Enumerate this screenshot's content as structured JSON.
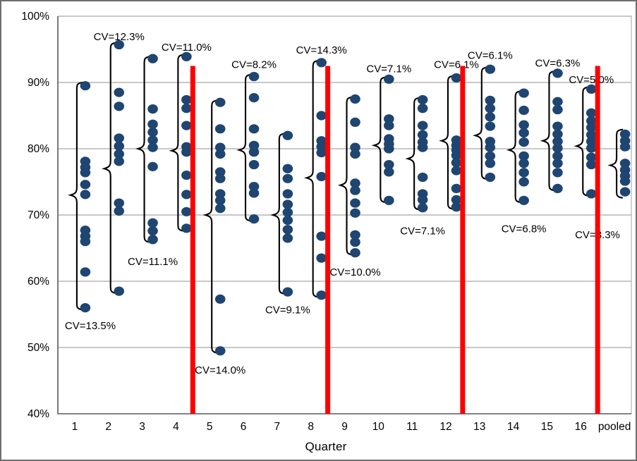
{
  "axes": {
    "x_title": "Quarter",
    "y_ticks": [
      {
        "label": "100%",
        "value": 100
      },
      {
        "label": "90%",
        "value": 90
      },
      {
        "label": "80%",
        "value": 80
      },
      {
        "label": "70%",
        "value": 70
      },
      {
        "label": "60%",
        "value": 60
      },
      {
        "label": "50%",
        "value": 50
      },
      {
        "label": "40%",
        "value": 40
      }
    ]
  },
  "colors": {
    "dot": "#1f4571",
    "brace": "#000000",
    "red_line": "#ff0000",
    "grid": "#a6a6a6",
    "axis": "#595959",
    "text": "#000000",
    "background": "#ffffff"
  },
  "chart_data": {
    "type": "scatter",
    "title": "",
    "xlabel": "Quarter",
    "ylabel": "",
    "ylim": [
      40,
      100
    ],
    "y_tick_step": 10,
    "grid": true,
    "categories": [
      "1",
      "2",
      "3",
      "4",
      "5",
      "6",
      "7",
      "8",
      "9",
      "10",
      "11",
      "12",
      "13",
      "14",
      "15",
      "16",
      "pooled"
    ],
    "dividers": {
      "after_categories": [
        "4",
        "8",
        "12",
        "16"
      ],
      "y_span": [
        40,
        92.5
      ]
    },
    "series": [
      {
        "category": "1",
        "values": [
          89.5,
          78.1,
          77.2,
          76.4,
          74.6,
          73.1,
          67.7,
          66.8,
          66.0,
          61.4,
          56.0
        ],
        "cv_label": "CV=13.5%",
        "cv_side": "below",
        "cv_y": 53.3,
        "brace": {
          "top": 90.0,
          "tip": 73.0,
          "bottom": 55.7
        }
      },
      {
        "category": "2",
        "values": [
          95.7,
          88.5,
          86.4,
          81.6,
          80.4,
          79.2,
          78.1,
          71.8,
          70.6,
          58.5
        ],
        "cv_label": "CV=12.3%",
        "cv_side": "above",
        "cv_y": 96.9,
        "brace": {
          "top": 96.0,
          "tip": 77.0,
          "bottom": 58.2
        }
      },
      {
        "category": "3",
        "values": [
          93.6,
          86.0,
          83.7,
          82.5,
          81.3,
          80.2,
          77.3,
          68.8,
          67.6,
          66.3
        ],
        "cv_label": "CV=11.1%",
        "cv_side": "below",
        "cv_y": 63.0,
        "brace": {
          "top": 93.9,
          "tip": 80.0,
          "bottom": 65.9
        }
      },
      {
        "category": "4",
        "values": [
          93.9,
          87.4,
          86.1,
          83.5,
          80.3,
          79.5,
          76.0,
          73.1,
          70.5,
          68.0
        ],
        "cv_label": "CV=11.0%",
        "cv_side": "above",
        "cv_y": 95.3,
        "brace": {
          "top": 94.2,
          "tip": 79.7,
          "bottom": 67.6
        }
      },
      {
        "category": "5",
        "values": [
          87.0,
          83.0,
          80.2,
          79.2,
          76.5,
          75.5,
          73.2,
          72.2,
          71.0,
          57.3,
          49.5
        ],
        "cv_label": "CV=14.0%",
        "cv_side": "below",
        "cv_y": 46.6,
        "brace": {
          "top": 87.3,
          "tip": 70.0,
          "bottom": 49.2
        }
      },
      {
        "category": "6",
        "values": [
          90.9,
          87.7,
          83.0,
          80.5,
          79.5,
          77.6,
          74.3,
          73.3,
          69.4
        ],
        "cv_label": "CV=8.2%",
        "cv_side": "above",
        "cv_y": 92.7,
        "brace": {
          "top": 91.2,
          "tip": 79.8,
          "bottom": 69.1
        }
      },
      {
        "category": "7",
        "values": [
          82.0,
          77.0,
          75.5,
          73.2,
          71.6,
          70.4,
          69.2,
          67.8,
          66.5,
          58.4
        ],
        "cv_label": "CV=9.1%",
        "cv_side": "below",
        "cv_y": 55.7,
        "brace": {
          "top": 82.3,
          "tip": 70.0,
          "bottom": 58.1
        }
      },
      {
        "category": "8",
        "values": [
          93.0,
          85.0,
          81.2,
          80.3,
          79.4,
          75.8,
          66.8,
          63.5,
          57.9
        ],
        "cv_label": "CV=14.3%",
        "cv_side": "above",
        "cv_y": 94.9,
        "brace": {
          "top": 93.3,
          "tip": 75.6,
          "bottom": 57.6
        }
      },
      {
        "category": "9",
        "values": [
          87.5,
          84.0,
          80.2,
          79.2,
          74.8,
          73.7,
          71.8,
          70.3,
          67.0,
          65.9,
          64.3
        ],
        "cv_label": "CV=10.0%",
        "cv_side": "below",
        "cv_y": 61.4,
        "brace": {
          "top": 87.8,
          "tip": 74.5,
          "bottom": 64.0
        }
      },
      {
        "category": "10",
        "values": [
          90.5,
          84.5,
          83.5,
          81.5,
          80.7,
          80.0,
          77.6,
          76.5,
          72.2
        ],
        "cv_label": "CV=7.1%",
        "cv_side": "above",
        "cv_y": 92.1,
        "brace": {
          "top": 90.8,
          "tip": 80.5,
          "bottom": 71.9
        }
      },
      {
        "category": "11",
        "values": [
          87.4,
          86.1,
          83.5,
          82.1,
          81.0,
          80.2,
          75.7,
          73.2,
          72.3,
          71.1
        ],
        "cv_label": "CV=7.1%",
        "cv_side": "below",
        "cv_y": 67.6,
        "brace": {
          "top": 87.7,
          "tip": 78.5,
          "bottom": 70.8
        }
      },
      {
        "category": "12",
        "values": [
          90.7,
          81.3,
          80.5,
          79.8,
          79.0,
          77.9,
          76.7,
          74.0,
          72.3,
          71.2
        ],
        "cv_label": "CV=6.1%",
        "cv_side": "above",
        "cv_y": 92.7,
        "brace": {
          "top": 91.0,
          "tip": 81.2,
          "bottom": 70.9
        }
      },
      {
        "category": "13",
        "values": [
          92.0,
          87.3,
          86.1,
          84.8,
          83.4,
          81.1,
          80.2,
          78.9,
          77.8,
          75.7
        ],
        "cv_label": "CV=6.1%",
        "cv_side": "above",
        "cv_y": 94.1,
        "brace": {
          "top": 92.3,
          "tip": 82.0,
          "bottom": 75.4
        }
      },
      {
        "category": "14",
        "values": [
          88.4,
          85.8,
          83.6,
          82.4,
          81.0,
          78.9,
          77.8,
          76.4,
          75.0,
          72.2
        ],
        "cv_label": "CV=6.8%",
        "cv_side": "below",
        "cv_y": 67.9,
        "brace": {
          "top": 88.7,
          "tip": 79.8,
          "bottom": 71.9
        }
      },
      {
        "category": "15",
        "values": [
          91.4,
          87.1,
          85.9,
          83.4,
          82.2,
          81.1,
          80.1,
          78.9,
          77.8,
          76.4,
          74.0
        ],
        "cv_label": "CV=6.3%",
        "cv_side": "above",
        "cv_y": 92.9,
        "brace": {
          "top": 91.7,
          "tip": 81.2,
          "bottom": 73.7
        }
      },
      {
        "category": "16",
        "values": [
          89.0,
          85.4,
          84.2,
          83.2,
          82.1,
          81.1,
          80.1,
          78.7,
          77.6,
          73.2
        ],
        "cv_label": "CV=5.0%",
        "cv_side": "above",
        "cv_y": 90.4,
        "brace": {
          "top": 89.3,
          "tip": 80.4,
          "bottom": 72.9
        }
      },
      {
        "category": "pooled",
        "values": [
          82.2,
          81.2,
          80.3,
          77.8,
          76.8,
          75.9,
          75.1,
          73.5
        ],
        "cv_label": "CV=3.3%",
        "cv_side": "below",
        "cv_y": 67.0,
        "brace": {
          "top": 82.9,
          "tip": 77.5,
          "bottom": 72.6
        }
      }
    ]
  }
}
